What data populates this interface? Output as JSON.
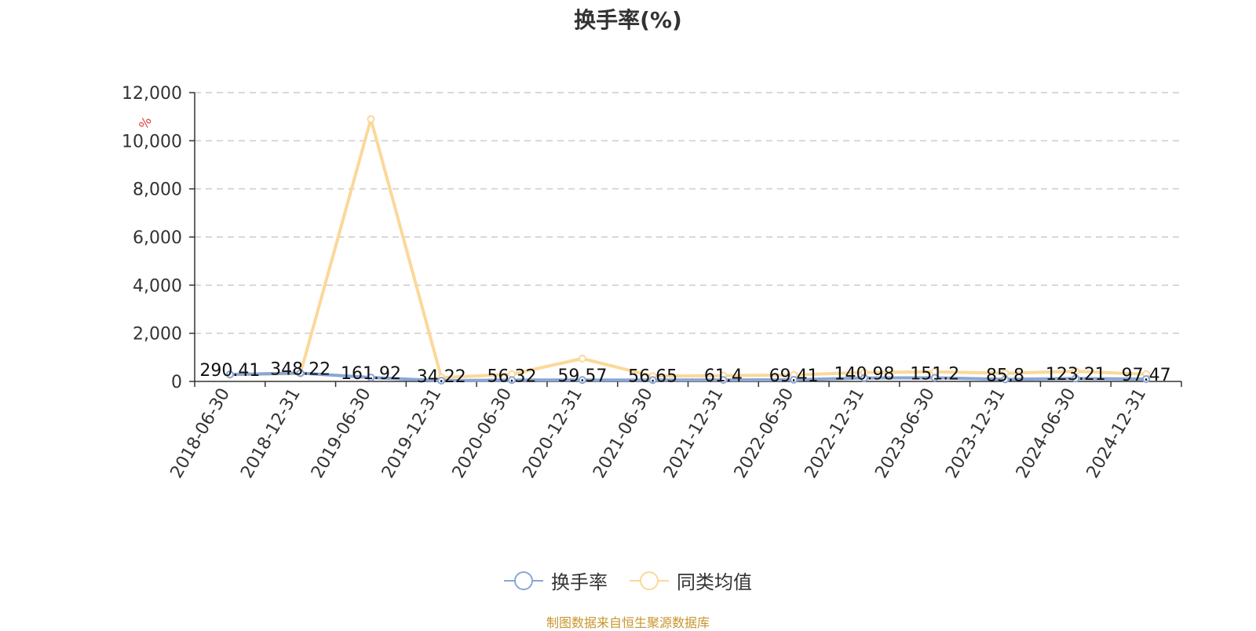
{
  "chart_data": {
    "type": "line",
    "title": "换手率(%)",
    "unit": "%",
    "categories": [
      "2018-06-30",
      "2018-12-31",
      "2019-06-30",
      "2019-12-31",
      "2020-06-30",
      "2020-12-31",
      "2021-06-30",
      "2021-12-31",
      "2022-06-30",
      "2022-12-31",
      "2023-06-30",
      "2023-12-31",
      "2024-06-30",
      "2024-12-31"
    ],
    "series": [
      {
        "name": "换手率",
        "color": "#8aa6d6",
        "values": [
          290.41,
          348.22,
          161.92,
          34.22,
          56.32,
          59.57,
          56.65,
          61.4,
          69.41,
          140.98,
          151.2,
          85.8,
          123.21,
          97.47
        ],
        "labels": [
          "290.41",
          "348.22",
          "161.92",
          "34.22",
          "56.32",
          "59.57",
          "56.65",
          "61.4",
          "69.41",
          "140.98",
          "151.2",
          "85.8",
          "123.21",
          "97.47"
        ]
      },
      {
        "name": "同类均值",
        "color": "#fbd89a",
        "values": [
          280,
          330,
          10900,
          160,
          300,
          950,
          220,
          240,
          270,
          370,
          400,
          340,
          420,
          300
        ]
      }
    ],
    "yticks": [
      "0",
      "2,000",
      "4,000",
      "6,000",
      "8,000",
      "10,000",
      "12,000"
    ],
    "ylim": [
      0,
      12000
    ],
    "grid": true,
    "legend_position": "bottom-center",
    "unit_color": "#e4393c"
  },
  "footer": {
    "text": "制图数据来自恒生聚源数据库",
    "color": "#c8962e"
  }
}
